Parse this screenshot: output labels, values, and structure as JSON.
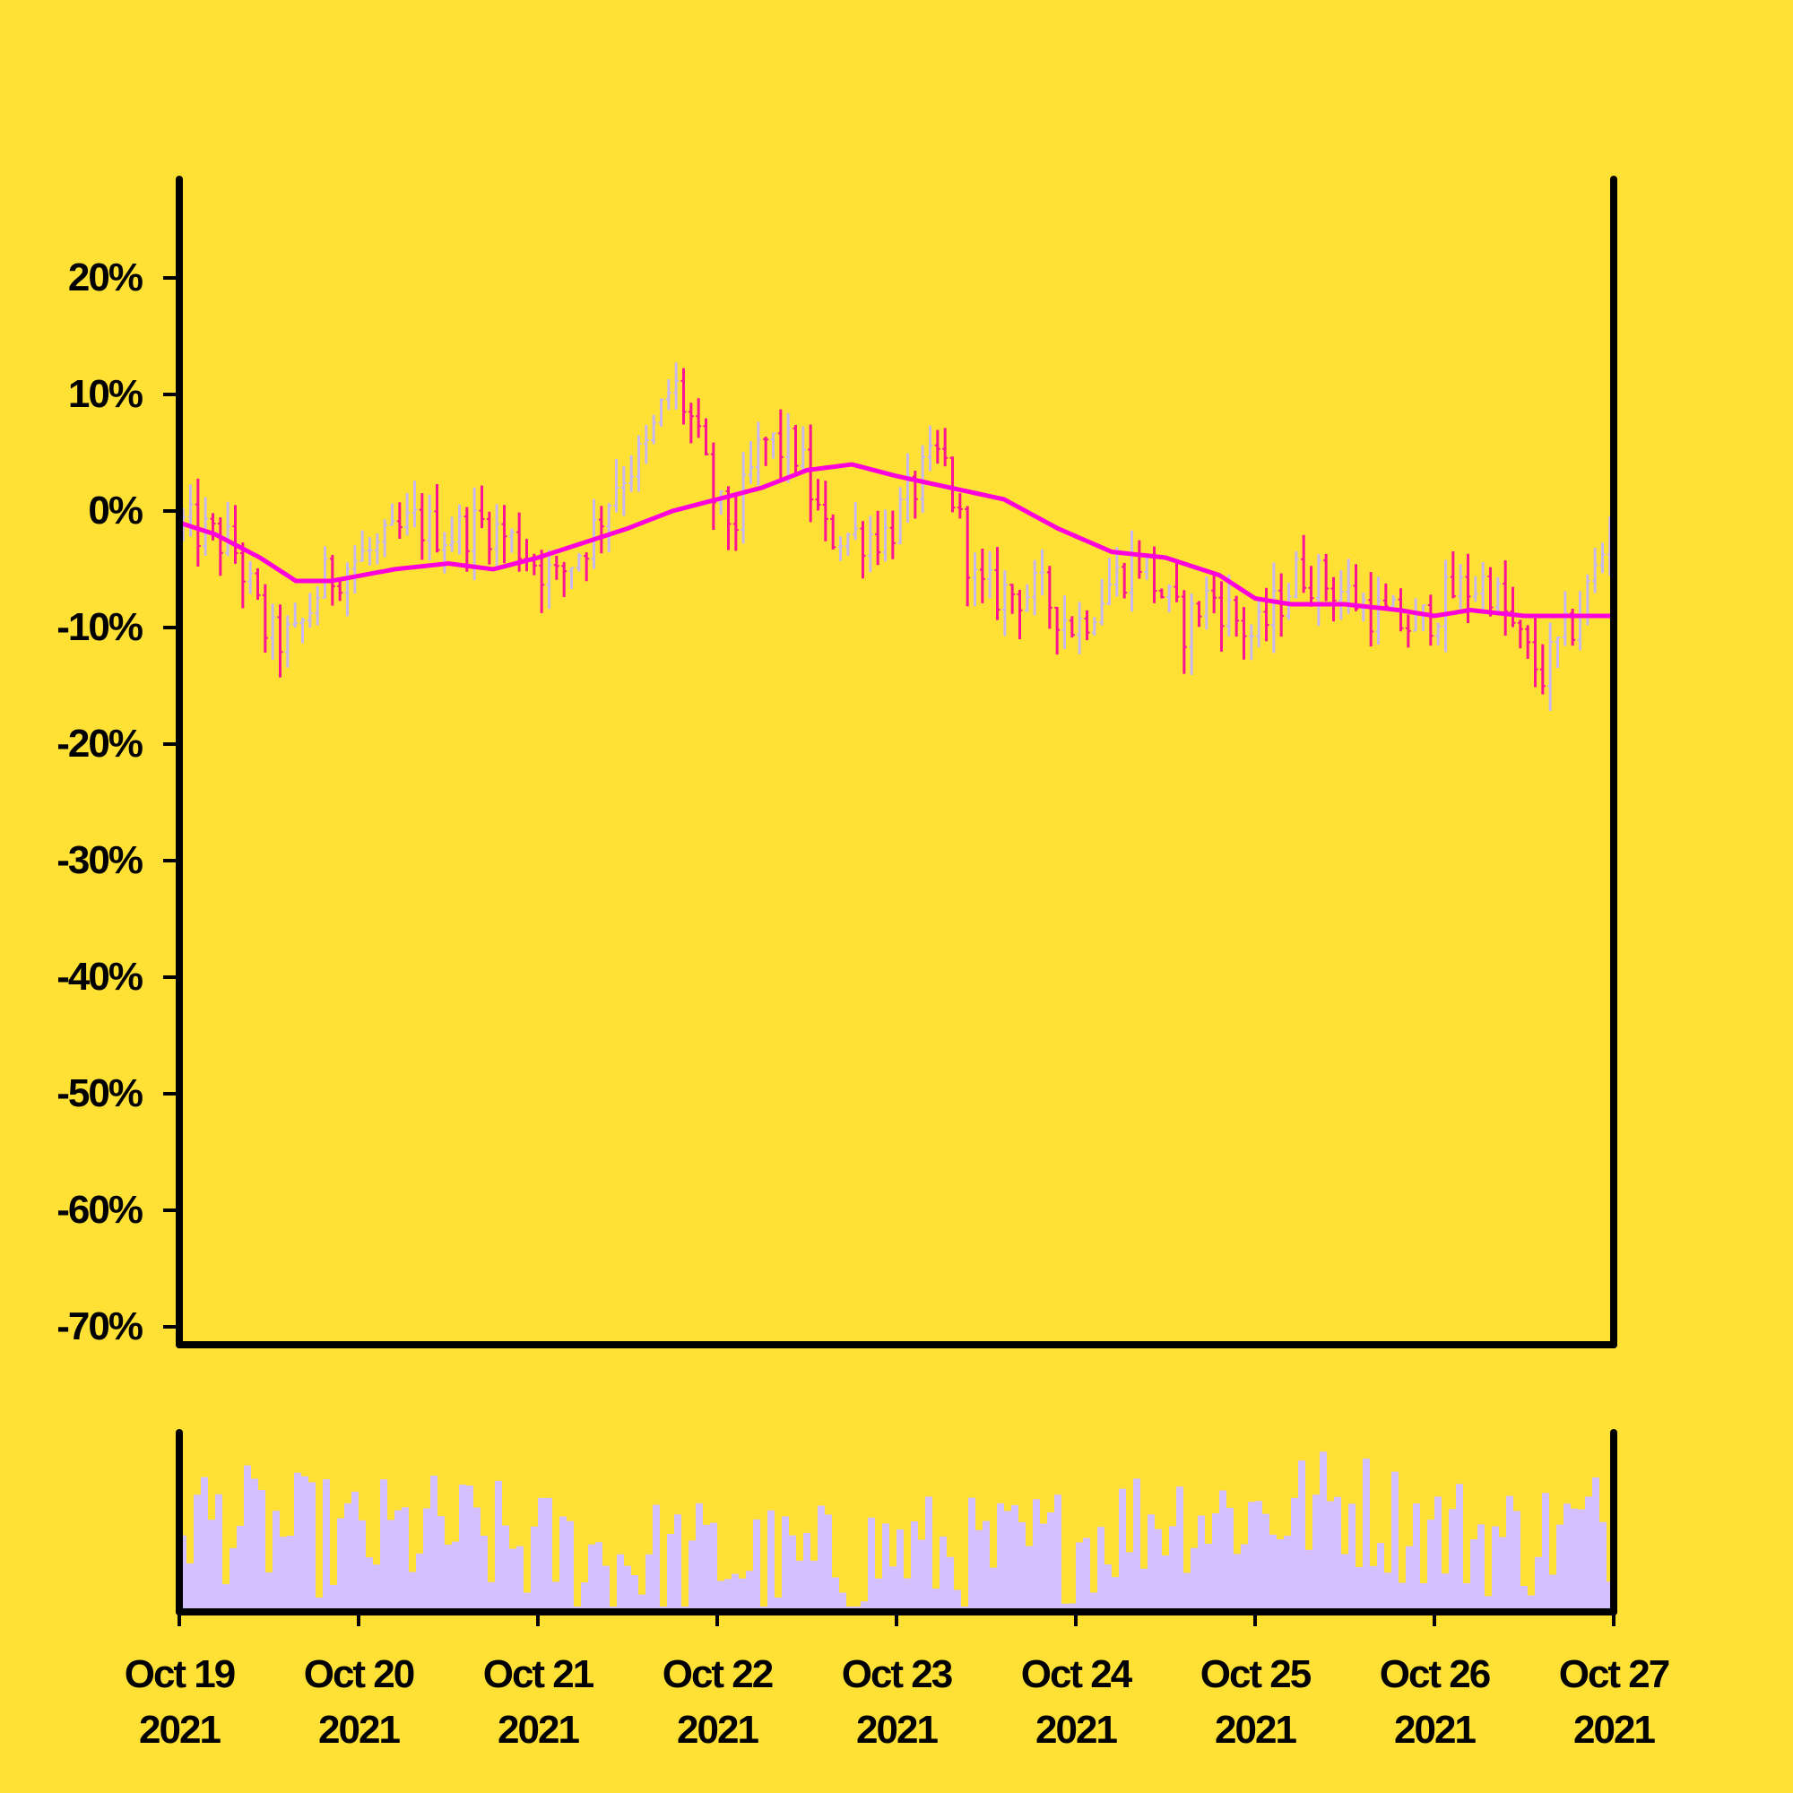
{
  "colors": {
    "background": "#ffe135",
    "axis": "#000000",
    "up_bar": "#c8b8f0",
    "down_bar": "#ff1493",
    "moving_average": "#ff00dd",
    "volume": "#d4bfff"
  },
  "chart_data": [
    {
      "type": "ohlc",
      "title": "",
      "xlabel": "",
      "ylabel": "",
      "x_range": [
        "2021-10-19",
        "2021-10-27"
      ],
      "ylim": [
        -70,
        28
      ],
      "y_unit": "%",
      "y_ticks": [
        {
          "value": 20,
          "label": "20%"
        },
        {
          "value": 10,
          "label": "10%"
        },
        {
          "value": 0,
          "label": "0%"
        },
        {
          "value": -10,
          "label": "-10%"
        },
        {
          "value": -20,
          "label": "-20%"
        },
        {
          "value": -30,
          "label": "-30%"
        },
        {
          "value": -40,
          "label": "-40%"
        },
        {
          "value": -50,
          "label": "-50%"
        },
        {
          "value": -60,
          "label": "-60%"
        },
        {
          "value": -70,
          "label": "-70%"
        }
      ],
      "close_path": [
        {
          "day": 0.0,
          "value": -1
        },
        {
          "day": 0.3,
          "value": -3
        },
        {
          "day": 0.5,
          "value": -11
        },
        {
          "day": 0.65,
          "value": -11
        },
        {
          "day": 0.8,
          "value": -6
        },
        {
          "day": 1.0,
          "value": -4
        },
        {
          "day": 1.15,
          "value": -3
        },
        {
          "day": 1.3,
          "value": -1
        },
        {
          "day": 1.5,
          "value": -2
        },
        {
          "day": 1.7,
          "value": -1
        },
        {
          "day": 1.9,
          "value": -3
        },
        {
          "day": 2.1,
          "value": -6
        },
        {
          "day": 2.3,
          "value": -2
        },
        {
          "day": 2.45,
          "value": 3
        },
        {
          "day": 2.6,
          "value": 5
        },
        {
          "day": 2.75,
          "value": 11
        },
        {
          "day": 2.85,
          "value": 8
        },
        {
          "day": 3.0,
          "value": 0
        },
        {
          "day": 3.1,
          "value": -1
        },
        {
          "day": 3.25,
          "value": 6
        },
        {
          "day": 3.45,
          "value": 5
        },
        {
          "day": 3.6,
          "value": -2
        },
        {
          "day": 3.8,
          "value": -2
        },
        {
          "day": 3.95,
          "value": -2
        },
        {
          "day": 4.1,
          "value": 2
        },
        {
          "day": 4.25,
          "value": 5
        },
        {
          "day": 4.45,
          "value": -7
        },
        {
          "day": 4.6,
          "value": -7
        },
        {
          "day": 4.8,
          "value": -7
        },
        {
          "day": 5.0,
          "value": -10
        },
        {
          "day": 5.2,
          "value": -6
        },
        {
          "day": 5.35,
          "value": -4
        },
        {
          "day": 5.6,
          "value": -10
        },
        {
          "day": 5.75,
          "value": -7
        },
        {
          "day": 6.0,
          "value": -11
        },
        {
          "day": 6.25,
          "value": -5
        },
        {
          "day": 6.5,
          "value": -7
        },
        {
          "day": 6.7,
          "value": -9
        },
        {
          "day": 6.9,
          "value": -10
        },
        {
          "day": 7.1,
          "value": -7
        },
        {
          "day": 7.3,
          "value": -6
        },
        {
          "day": 7.5,
          "value": -12
        },
        {
          "day": 7.6,
          "value": -14
        },
        {
          "day": 7.8,
          "value": -9
        },
        {
          "day": 8.0,
          "value": -1
        }
      ],
      "moving_average": [
        {
          "day": 0.0,
          "value": -1
        },
        {
          "day": 0.2,
          "value": -2
        },
        {
          "day": 0.45,
          "value": -4
        },
        {
          "day": 0.65,
          "value": -6
        },
        {
          "day": 0.85,
          "value": -6
        },
        {
          "day": 1.2,
          "value": -5
        },
        {
          "day": 1.5,
          "value": -4.5
        },
        {
          "day": 1.75,
          "value": -5
        },
        {
          "day": 2.0,
          "value": -4
        },
        {
          "day": 2.2,
          "value": -3
        },
        {
          "day": 2.5,
          "value": -1.5
        },
        {
          "day": 2.75,
          "value": 0
        },
        {
          "day": 3.0,
          "value": 1
        },
        {
          "day": 3.25,
          "value": 2
        },
        {
          "day": 3.5,
          "value": 3.5
        },
        {
          "day": 3.75,
          "value": 4
        },
        {
          "day": 4.0,
          "value": 3
        },
        {
          "day": 4.3,
          "value": 2
        },
        {
          "day": 4.6,
          "value": 1
        },
        {
          "day": 4.9,
          "value": -1.5
        },
        {
          "day": 5.2,
          "value": -3.5
        },
        {
          "day": 5.5,
          "value": -4
        },
        {
          "day": 5.8,
          "value": -5.5
        },
        {
          "day": 6.0,
          "value": -7.5
        },
        {
          "day": 6.2,
          "value": -8
        },
        {
          "day": 6.5,
          "value": -8
        },
        {
          "day": 6.8,
          "value": -8.5
        },
        {
          "day": 7.0,
          "value": -9
        },
        {
          "day": 7.2,
          "value": -8.5
        },
        {
          "day": 7.5,
          "value": -9
        },
        {
          "day": 7.8,
          "value": -9
        },
        {
          "day": 8.0,
          "value": -9
        }
      ]
    },
    {
      "type": "bar",
      "title": "",
      "xlabel": "",
      "ylabel": "",
      "series_name": "",
      "x_ticks": [
        {
          "day": 0,
          "label_line1": "Oct 19",
          "label_line2": "2021"
        },
        {
          "day": 1,
          "label_line1": "Oct 20",
          "label_line2": "2021"
        },
        {
          "day": 2,
          "label_line1": "Oct 21",
          "label_line2": "2021"
        },
        {
          "day": 3,
          "label_line1": "Oct 22",
          "label_line2": "2021"
        },
        {
          "day": 4,
          "label_line1": "Oct 23",
          "label_line2": "2021"
        },
        {
          "day": 5,
          "label_line1": "Oct 24",
          "label_line2": "2021"
        },
        {
          "day": 6,
          "label_line1": "Oct 25",
          "label_line2": "2021"
        },
        {
          "day": 7,
          "label_line1": "Oct 26",
          "label_line2": "2021"
        },
        {
          "day": 8,
          "label_line1": "Oct 27",
          "label_line2": "2021"
        }
      ],
      "volume_profile": [
        {
          "day": 0.0,
          "level": 0.55
        },
        {
          "day": 0.5,
          "level": 0.45
        },
        {
          "day": 1.0,
          "level": 0.4
        },
        {
          "day": 1.5,
          "level": 0.45
        },
        {
          "day": 2.0,
          "level": 0.35
        },
        {
          "day": 2.5,
          "level": 0.3
        },
        {
          "day": 3.0,
          "level": 0.3
        },
        {
          "day": 3.5,
          "level": 0.25
        },
        {
          "day": 4.0,
          "level": 0.35
        },
        {
          "day": 4.5,
          "level": 0.3
        },
        {
          "day": 5.0,
          "level": 0.4
        },
        {
          "day": 5.5,
          "level": 0.55
        },
        {
          "day": 6.0,
          "level": 0.55
        },
        {
          "day": 6.5,
          "level": 0.6
        },
        {
          "day": 7.0,
          "level": 0.45
        },
        {
          "day": 7.5,
          "level": 0.4
        },
        {
          "day": 8.0,
          "level": 0.5
        }
      ]
    }
  ]
}
